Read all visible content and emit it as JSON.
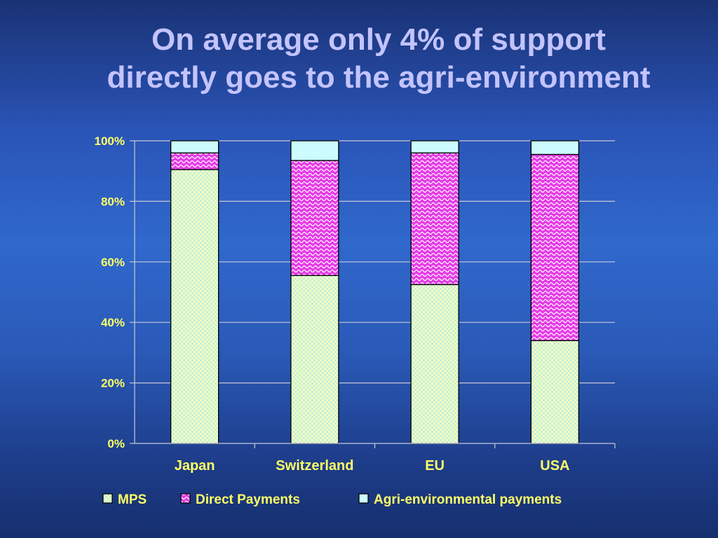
{
  "title": {
    "line1": "On average only 4% of support",
    "line2": "directly goes to the agri-environment"
  },
  "colors": {
    "mps": "#f4ffc0",
    "mps_pattern": "#c6f0d8",
    "direct_payments": "#e63ce6",
    "direct_payments_pattern": "#ffffff",
    "agri_env": "#ccfcff",
    "text": "#ffff66",
    "grid": "#c8c8d8"
  },
  "chart_data": {
    "type": "bar",
    "stacked": true,
    "percent_axis": true,
    "categories": [
      "Japan",
      "Switzerland",
      "EU",
      "USA"
    ],
    "series": [
      {
        "name": "MPS",
        "values": [
          90.5,
          55.5,
          52.5,
          34
        ]
      },
      {
        "name": "Direct Payments",
        "values": [
          5.5,
          38,
          43.5,
          61.5
        ]
      },
      {
        "name": "Agri-environmental payments",
        "values": [
          4,
          6.5,
          4,
          4.5
        ]
      }
    ],
    "yticks": [
      "0%",
      "20%",
      "40%",
      "60%",
      "80%",
      "100%"
    ],
    "ylim": [
      0,
      100
    ],
    "grid": true,
    "legend_position": "bottom"
  }
}
